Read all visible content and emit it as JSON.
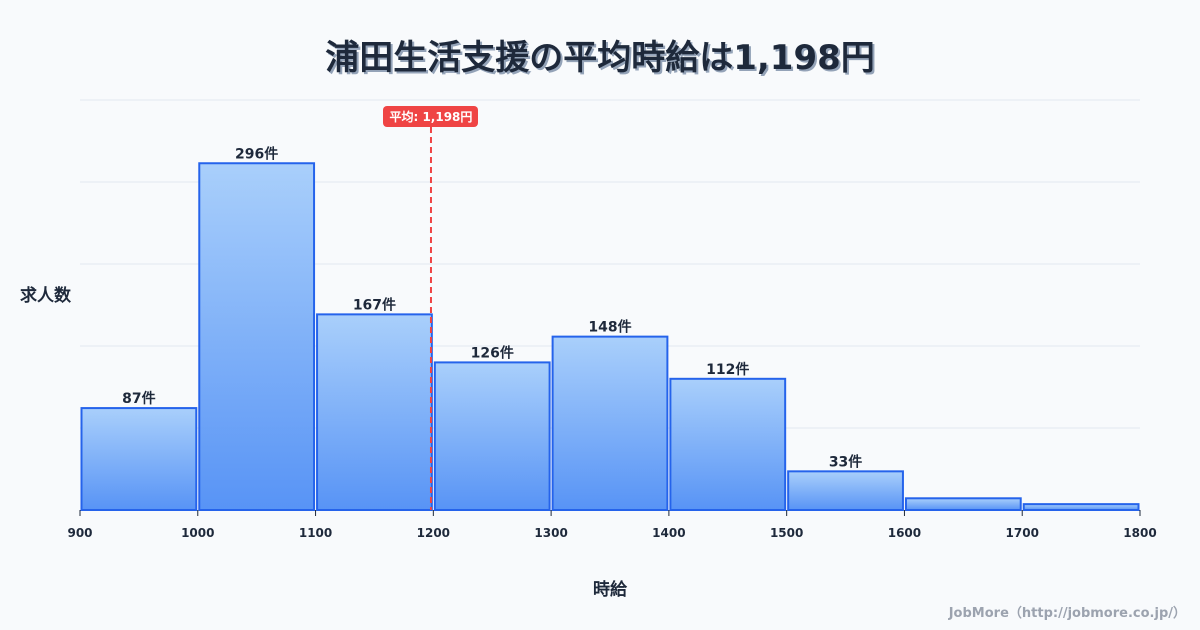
{
  "title": "浦田生活支援の平均時給は1,198円",
  "axes": {
    "ylabel": "求人数",
    "xlabel": "時給"
  },
  "average": {
    "label": "平均: 1,198円",
    "value": 1198,
    "color": "#ef4444"
  },
  "credit": "JobMore（http://jobmore.co.jp/）",
  "colors": {
    "bar_fill_top": "#a5cdfb",
    "bar_fill_bottom": "#4f8ef5",
    "bar_stroke": "#2563eb",
    "grid": "#e2e8f0",
    "text": "#1e293b"
  },
  "chart_data": {
    "type": "bar",
    "title": "浦田生活支援の平均時給は1,198円",
    "xlabel": "時給",
    "ylabel": "求人数",
    "bins": [
      900,
      1000,
      1100,
      1200,
      1300,
      1400,
      1500,
      1600,
      1700,
      1800
    ],
    "categories": [
      "900-1000",
      "1000-1100",
      "1100-1200",
      "1200-1300",
      "1300-1400",
      "1400-1500",
      "1500-1600",
      "1600-1700",
      "1700-1800"
    ],
    "values": [
      87,
      296,
      167,
      126,
      148,
      112,
      33,
      10,
      5
    ],
    "value_labels": [
      "87件",
      "296件",
      "167件",
      "126件",
      "148件",
      "112件",
      "33件",
      "",
      ""
    ],
    "x_ticks": [
      "900",
      "1000",
      "1100",
      "1200",
      "1300",
      "1400",
      "1500",
      "1600",
      "1700",
      "1800"
    ],
    "xlim": [
      900,
      1800
    ],
    "ylim": [
      0,
      350
    ],
    "grid": true,
    "annotations": [
      {
        "type": "vline",
        "x": 1198,
        "label": "平均: 1,198円",
        "style": "dashed",
        "color": "#ef4444"
      }
    ],
    "legend": null
  }
}
